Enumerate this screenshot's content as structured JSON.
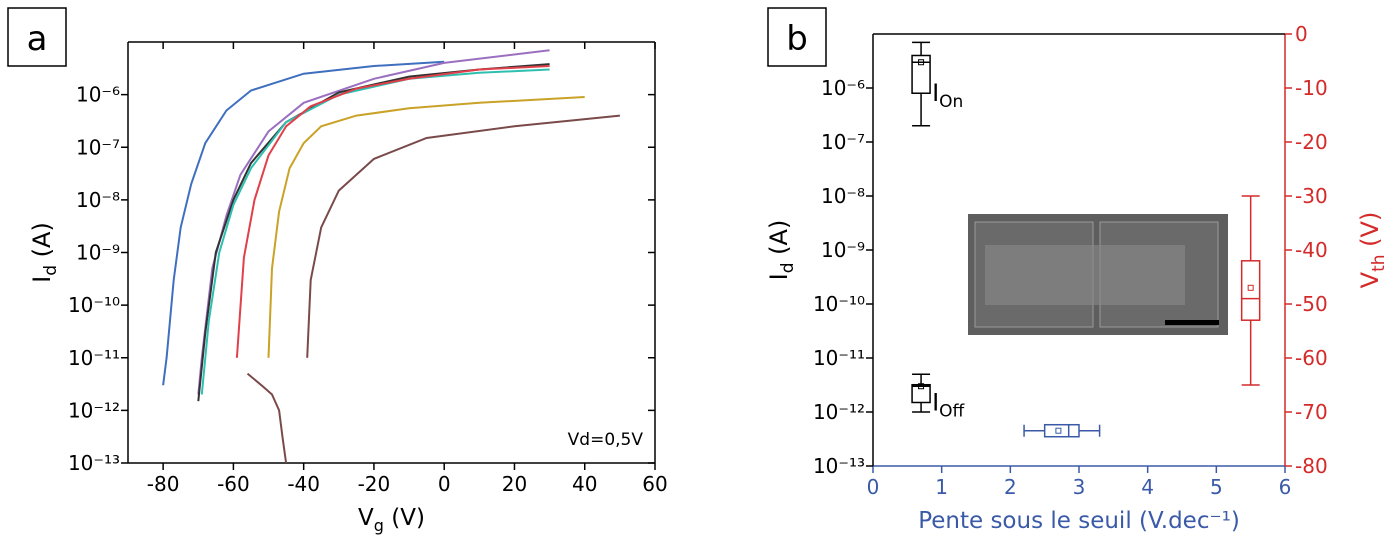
{
  "chart_data": [
    {
      "type": "line",
      "panel": "a",
      "annotation": "Vd=0,5V",
      "xlabel": {
        "text": "V",
        "sub": "g",
        "tail": " (V)"
      },
      "ylabel": {
        "text": "I",
        "sub": "d",
        "tail": " (A)"
      },
      "xlim": [
        -90,
        60
      ],
      "xticks": [
        -80,
        -60,
        -40,
        -20,
        0,
        20,
        40,
        60
      ],
      "ylim": [
        1e-13,
        1e-05
      ],
      "log_y": true,
      "yticks": [
        {
          "value": 1e-13,
          "label": "10⁻¹³"
        },
        {
          "value": 1e-12,
          "label": "10⁻¹²"
        },
        {
          "value": 1e-11,
          "label": "10⁻¹¹"
        },
        {
          "value": 1e-10,
          "label": "10⁻¹⁰"
        },
        {
          "value": 1e-09,
          "label": "10⁻⁹"
        },
        {
          "value": 1e-08,
          "label": "10⁻⁸"
        },
        {
          "value": 1e-07,
          "label": "10⁻⁷"
        },
        {
          "value": 1e-06,
          "label": "10⁻⁶"
        }
      ],
      "series": [
        {
          "color": "#3f6fbf",
          "x": [
            -80,
            -79,
            -77,
            -75,
            -72,
            -68,
            -62,
            -55,
            -40,
            -20,
            0
          ],
          "values": [
            3e-12,
            1e-11,
            3e-10,
            3e-09,
            2e-08,
            1.2e-07,
            5e-07,
            1.2e-06,
            2.5e-06,
            3.5e-06,
            4.2e-06
          ]
        },
        {
          "color": "#9b6fc0",
          "x": [
            -70,
            -69,
            -66,
            -62,
            -58,
            -50,
            -40,
            -20,
            0,
            30
          ],
          "values": [
            2e-12,
            1e-11,
            5e-10,
            5e-09,
            3e-08,
            2e-07,
            7e-07,
            2e-06,
            4e-06,
            7e-06
          ]
        },
        {
          "color": "#333333",
          "x": [
            -70,
            -68,
            -65,
            -60,
            -55,
            -45,
            -30,
            -10,
            10,
            30
          ],
          "values": [
            1.5e-12,
            3e-11,
            1e-09,
            1e-08,
            5e-08,
            3e-07,
            1.1e-06,
            2.2e-06,
            3e-06,
            3.8e-06
          ]
        },
        {
          "color": "#2fbfb0",
          "x": [
            -69,
            -67,
            -64,
            -60,
            -55,
            -45,
            -30,
            -10,
            10,
            30
          ],
          "values": [
            2e-12,
            5e-11,
            1e-09,
            8e-09,
            4e-08,
            3e-07,
            1e-06,
            2e-06,
            2.6e-06,
            3e-06
          ]
        },
        {
          "color": "#e0404a",
          "x": [
            -59,
            -57,
            -54,
            -50,
            -45,
            -38,
            -25,
            -10,
            10,
            30
          ],
          "values": [
            1e-11,
            8e-10,
            1e-08,
            7e-08,
            2.5e-07,
            6e-07,
            1.3e-06,
            2e-06,
            3e-06,
            3.5e-06
          ]
        },
        {
          "color": "#c9a227",
          "x": [
            -50,
            -49,
            -47,
            -44,
            -40,
            -35,
            -25,
            -10,
            10,
            40
          ],
          "values": [
            1e-11,
            5e-10,
            6e-09,
            4e-08,
            1.2e-07,
            2.5e-07,
            4e-07,
            5.5e-07,
            7e-07,
            9e-07
          ]
        },
        {
          "color": "#7a4a4a",
          "x": [
            -56,
            -52,
            -49,
            -47,
            -46,
            -45,
            -42,
            -39,
            -38,
            -35,
            -30,
            -20,
            -5,
            20,
            50
          ],
          "values": [
            5e-12,
            3e-12,
            2e-12,
            1e-12,
            3e-13,
            1e-13,
            null,
            1e-11,
            3e-10,
            3e-09,
            1.5e-08,
            6e-08,
            1.5e-07,
            2.5e-07,
            4e-07
          ]
        }
      ]
    },
    {
      "type": "box",
      "panel": "b",
      "xlabel": {
        "text": "Pente sous le seuil (V.dec⁻¹)"
      },
      "ylabel": {
        "text": "I",
        "sub": "d",
        "tail": " (A)"
      },
      "y2label": {
        "text": "V",
        "sub": "th",
        "tail": " (V)"
      },
      "xlim": [
        0,
        6
      ],
      "xticks": [
        0,
        1,
        2,
        3,
        4,
        5,
        6
      ],
      "ylim": [
        1e-13,
        1e-05
      ],
      "log_y": true,
      "yticks": [
        {
          "value": 1e-13,
          "label": "10⁻¹³"
        },
        {
          "value": 1e-12,
          "label": "10⁻¹²"
        },
        {
          "value": 1e-11,
          "label": "10⁻¹¹"
        },
        {
          "value": 1e-10,
          "label": "10⁻¹⁰"
        },
        {
          "value": 1e-09,
          "label": "10⁻⁹"
        },
        {
          "value": 1e-08,
          "label": "10⁻⁸"
        },
        {
          "value": 1e-07,
          "label": "10⁻⁷"
        },
        {
          "value": 1e-06,
          "label": "10⁻⁶"
        }
      ],
      "y2lim": [
        -80,
        0
      ],
      "y2ticks": [
        0,
        -10,
        -20,
        -30,
        -40,
        -50,
        -60,
        -70,
        -80
      ],
      "x_color": "#3a5aa8",
      "y2_color": "#d42a2a",
      "boxes": [
        {
          "name": {
            "text": "I",
            "sub": "On"
          },
          "color": "#000000",
          "orientation": "vertical",
          "axis": "y",
          "position": 0.7,
          "min": 2e-07,
          "q1": 8e-07,
          "median": 3e-06,
          "q3": 4e-06,
          "max": 7e-06,
          "mean": 3e-06
        },
        {
          "name": {
            "text": "I",
            "sub": "Off"
          },
          "color": "#000000",
          "orientation": "vertical",
          "axis": "y",
          "position": 0.7,
          "min": 1e-12,
          "q1": 1.5e-12,
          "median": 3e-12,
          "q3": 3.2e-12,
          "max": 5e-12,
          "mean": 3e-12
        },
        {
          "color": "#3a5aa8",
          "orientation": "horizontal",
          "axis": "y",
          "position": 4.5e-13,
          "min": 2.2,
          "q1": 2.5,
          "median": 2.85,
          "q3": 3.0,
          "max": 3.3,
          "mean": 2.7
        },
        {
          "color": "#d42a2a",
          "orientation": "vertical",
          "axis": "y2",
          "position": 5.5,
          "min": -65,
          "q1": -53,
          "median": -49,
          "q3": -42,
          "max": -30,
          "mean": -47
        }
      ]
    }
  ]
}
